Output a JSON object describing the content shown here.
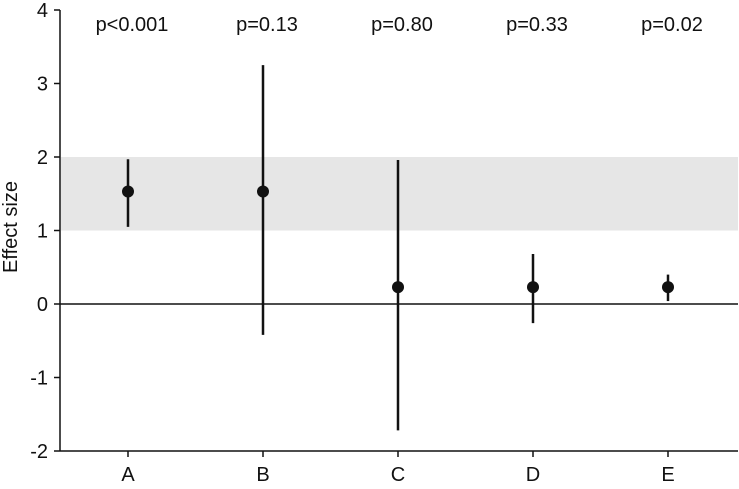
{
  "chart_data": {
    "type": "scatter",
    "categories": [
      "A",
      "B",
      "C",
      "D",
      "E"
    ],
    "estimates": [
      1.53,
      1.53,
      0.23,
      0.23,
      0.23
    ],
    "ci_lower": [
      1.05,
      -0.42,
      -1.72,
      -0.26,
      0.04
    ],
    "ci_upper": [
      1.97,
      3.25,
      1.96,
      0.68,
      0.4
    ],
    "annotations": [
      "p<0.001",
      "p=0.13",
      "p=0.80",
      "p=0.33",
      "p=0.02"
    ],
    "xlabel": "",
    "ylabel": "Effect size",
    "ylim": [
      -2,
      4
    ],
    "yticks": [
      4,
      3,
      2,
      1,
      0,
      -1,
      -2
    ],
    "ytick_labels": [
      "4",
      "3",
      "2",
      "1",
      "0",
      "-1",
      "-2"
    ],
    "reference_line": 0,
    "shaded_band": [
      1,
      2
    ],
    "grid": false,
    "colors": {
      "marker": "#111111",
      "band": "#e6e6e6",
      "axis": "#111111"
    }
  }
}
